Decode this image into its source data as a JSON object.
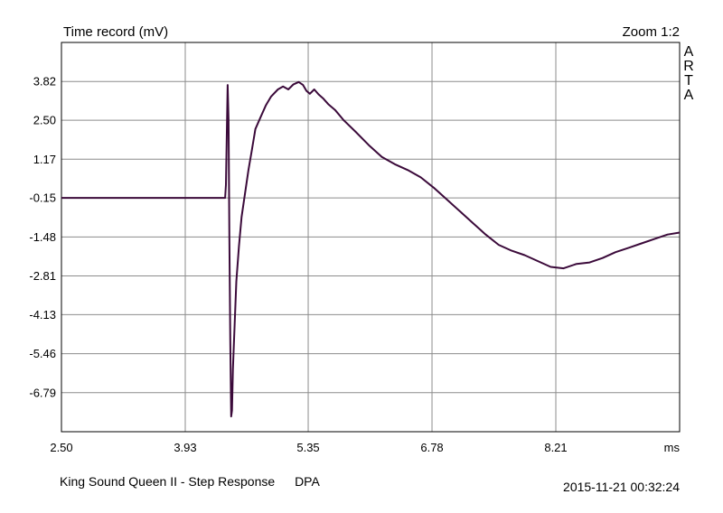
{
  "chart_data": {
    "type": "line",
    "title": "Time record (mV)",
    "zoom_label": "Zoom 1:2",
    "brand": "ARTA",
    "x_unit": "ms",
    "xlim": [
      2.5,
      9.64
    ],
    "ylim": [
      -8.12,
      5.15
    ],
    "x_ticks": [
      "2.50",
      "3.93",
      "5.35",
      "6.78",
      "8.21"
    ],
    "y_ticks": [
      "3.82",
      "2.50",
      "1.17",
      "-0.15",
      "-1.48",
      "-2.81",
      "-4.13",
      "-5.46",
      "-6.79"
    ],
    "grid": true,
    "series": [
      {
        "color": "#3b0a3a",
        "x": [
          2.5,
          4.39,
          4.4,
          4.42,
          4.43,
          4.44,
          4.45,
          4.46,
          4.47,
          4.48,
          4.5,
          4.52,
          4.55,
          4.58,
          4.62,
          4.66,
          4.7,
          4.74,
          4.8,
          4.86,
          4.92,
          5.0,
          5.06,
          5.12,
          5.18,
          5.24,
          5.29,
          5.33,
          5.37,
          5.42,
          5.47,
          5.52,
          5.58,
          5.66,
          5.76,
          5.9,
          6.05,
          6.2,
          6.35,
          6.5,
          6.65,
          6.8,
          6.95,
          7.1,
          7.25,
          7.4,
          7.55,
          7.7,
          7.85,
          8.0,
          8.15,
          8.3,
          8.45,
          8.6,
          8.75,
          8.9,
          9.05,
          9.2,
          9.35,
          9.5,
          9.64
        ],
        "y": [
          -0.15,
          -0.15,
          0.3,
          3.7,
          2.5,
          -1.5,
          -5.0,
          -7.6,
          -7.4,
          -6.0,
          -4.5,
          -3.0,
          -1.8,
          -0.8,
          0.0,
          0.8,
          1.5,
          2.2,
          2.6,
          3.0,
          3.3,
          3.55,
          3.65,
          3.55,
          3.72,
          3.8,
          3.7,
          3.5,
          3.4,
          3.55,
          3.38,
          3.25,
          3.05,
          2.85,
          2.5,
          2.1,
          1.65,
          1.25,
          1.0,
          0.8,
          0.55,
          0.2,
          -0.2,
          -0.6,
          -1.0,
          -1.4,
          -1.75,
          -1.95,
          -2.1,
          -2.3,
          -2.5,
          -2.55,
          -2.4,
          -2.35,
          -2.2,
          -2.0,
          -1.85,
          -1.7,
          -1.55,
          -1.4,
          -1.33
        ]
      }
    ]
  },
  "footer": {
    "caption": "King Sound Queen II - Step Response",
    "tag": "DPA",
    "timestamp": "2015-11-21  00:32:24"
  }
}
